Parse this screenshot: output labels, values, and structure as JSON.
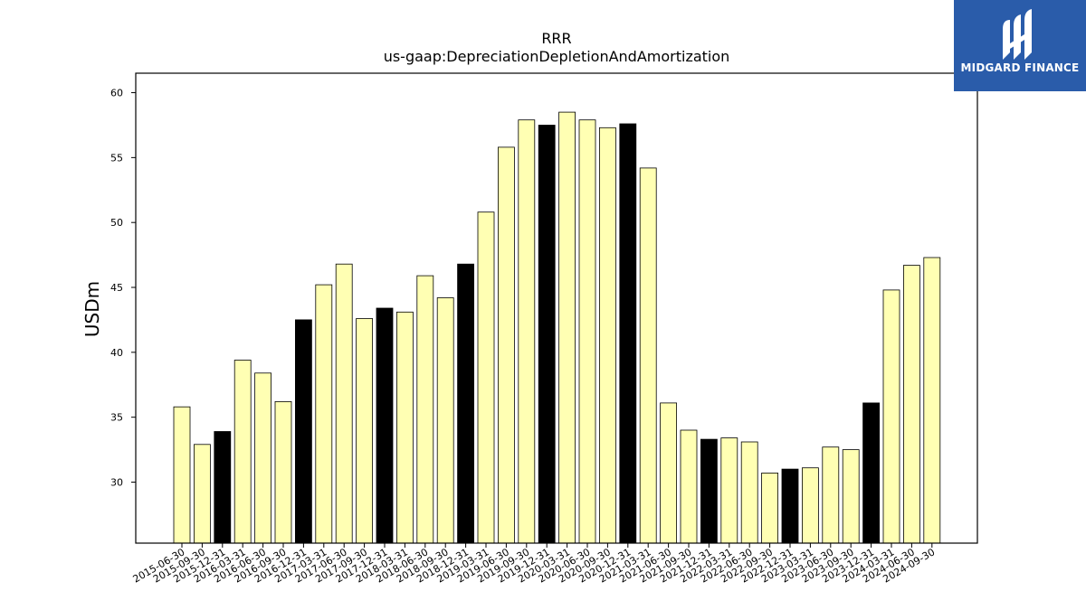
{
  "brand": {
    "name": "MIDGARD FINANCE",
    "bg_color": "#2a5caa",
    "mark_icon": "midgard-logo-icon"
  },
  "chart_data": {
    "type": "bar",
    "title": "RRR",
    "subtitle": "us-gaap:DepreciationDepletionAndAmortization",
    "xlabel": "",
    "ylabel": "USDm",
    "ylim": [
      25.3,
      61.5
    ],
    "yticks": [
      30,
      35,
      40,
      45,
      50,
      55,
      60
    ],
    "grid": false,
    "legend": "none",
    "colors": {
      "quarter": "#ffffb3",
      "year_end": "#000000",
      "edge": "#000000"
    },
    "categories": [
      "2015-06-30",
      "2015-09-30",
      "2015-12-31",
      "2016-03-31",
      "2016-06-30",
      "2016-09-30",
      "2016-12-31",
      "2017-03-31",
      "2017-06-30",
      "2017-09-30",
      "2017-12-31",
      "2018-03-31",
      "2018-06-30",
      "2018-09-30",
      "2018-12-31",
      "2019-03-31",
      "2019-06-30",
      "2019-09-30",
      "2019-12-31",
      "2020-03-31",
      "2020-06-30",
      "2020-09-30",
      "2020-12-31",
      "2021-03-31",
      "2021-06-30",
      "2021-09-30",
      "2021-12-31",
      "2022-03-31",
      "2022-06-30",
      "2022-09-30",
      "2022-12-31",
      "2023-03-31",
      "2023-06-30",
      "2023-09-30",
      "2023-12-31",
      "2024-03-31",
      "2024-06-30",
      "2024-09-30"
    ],
    "values": [
      35.8,
      32.9,
      33.9,
      39.4,
      38.4,
      36.2,
      42.5,
      45.2,
      46.8,
      42.6,
      43.4,
      43.1,
      45.9,
      44.2,
      46.8,
      50.8,
      55.8,
      57.9,
      57.5,
      58.5,
      57.9,
      57.3,
      57.6,
      54.2,
      36.1,
      34.0,
      33.3,
      33.4,
      33.1,
      30.7,
      31.0,
      31.1,
      32.7,
      32.5,
      36.1,
      44.8,
      46.7,
      47.3
    ],
    "highlight": [
      false,
      false,
      true,
      false,
      false,
      false,
      true,
      false,
      false,
      false,
      true,
      false,
      false,
      false,
      true,
      false,
      false,
      false,
      true,
      false,
      false,
      false,
      true,
      false,
      false,
      false,
      true,
      false,
      false,
      false,
      true,
      false,
      false,
      false,
      true,
      false,
      false,
      false
    ]
  }
}
